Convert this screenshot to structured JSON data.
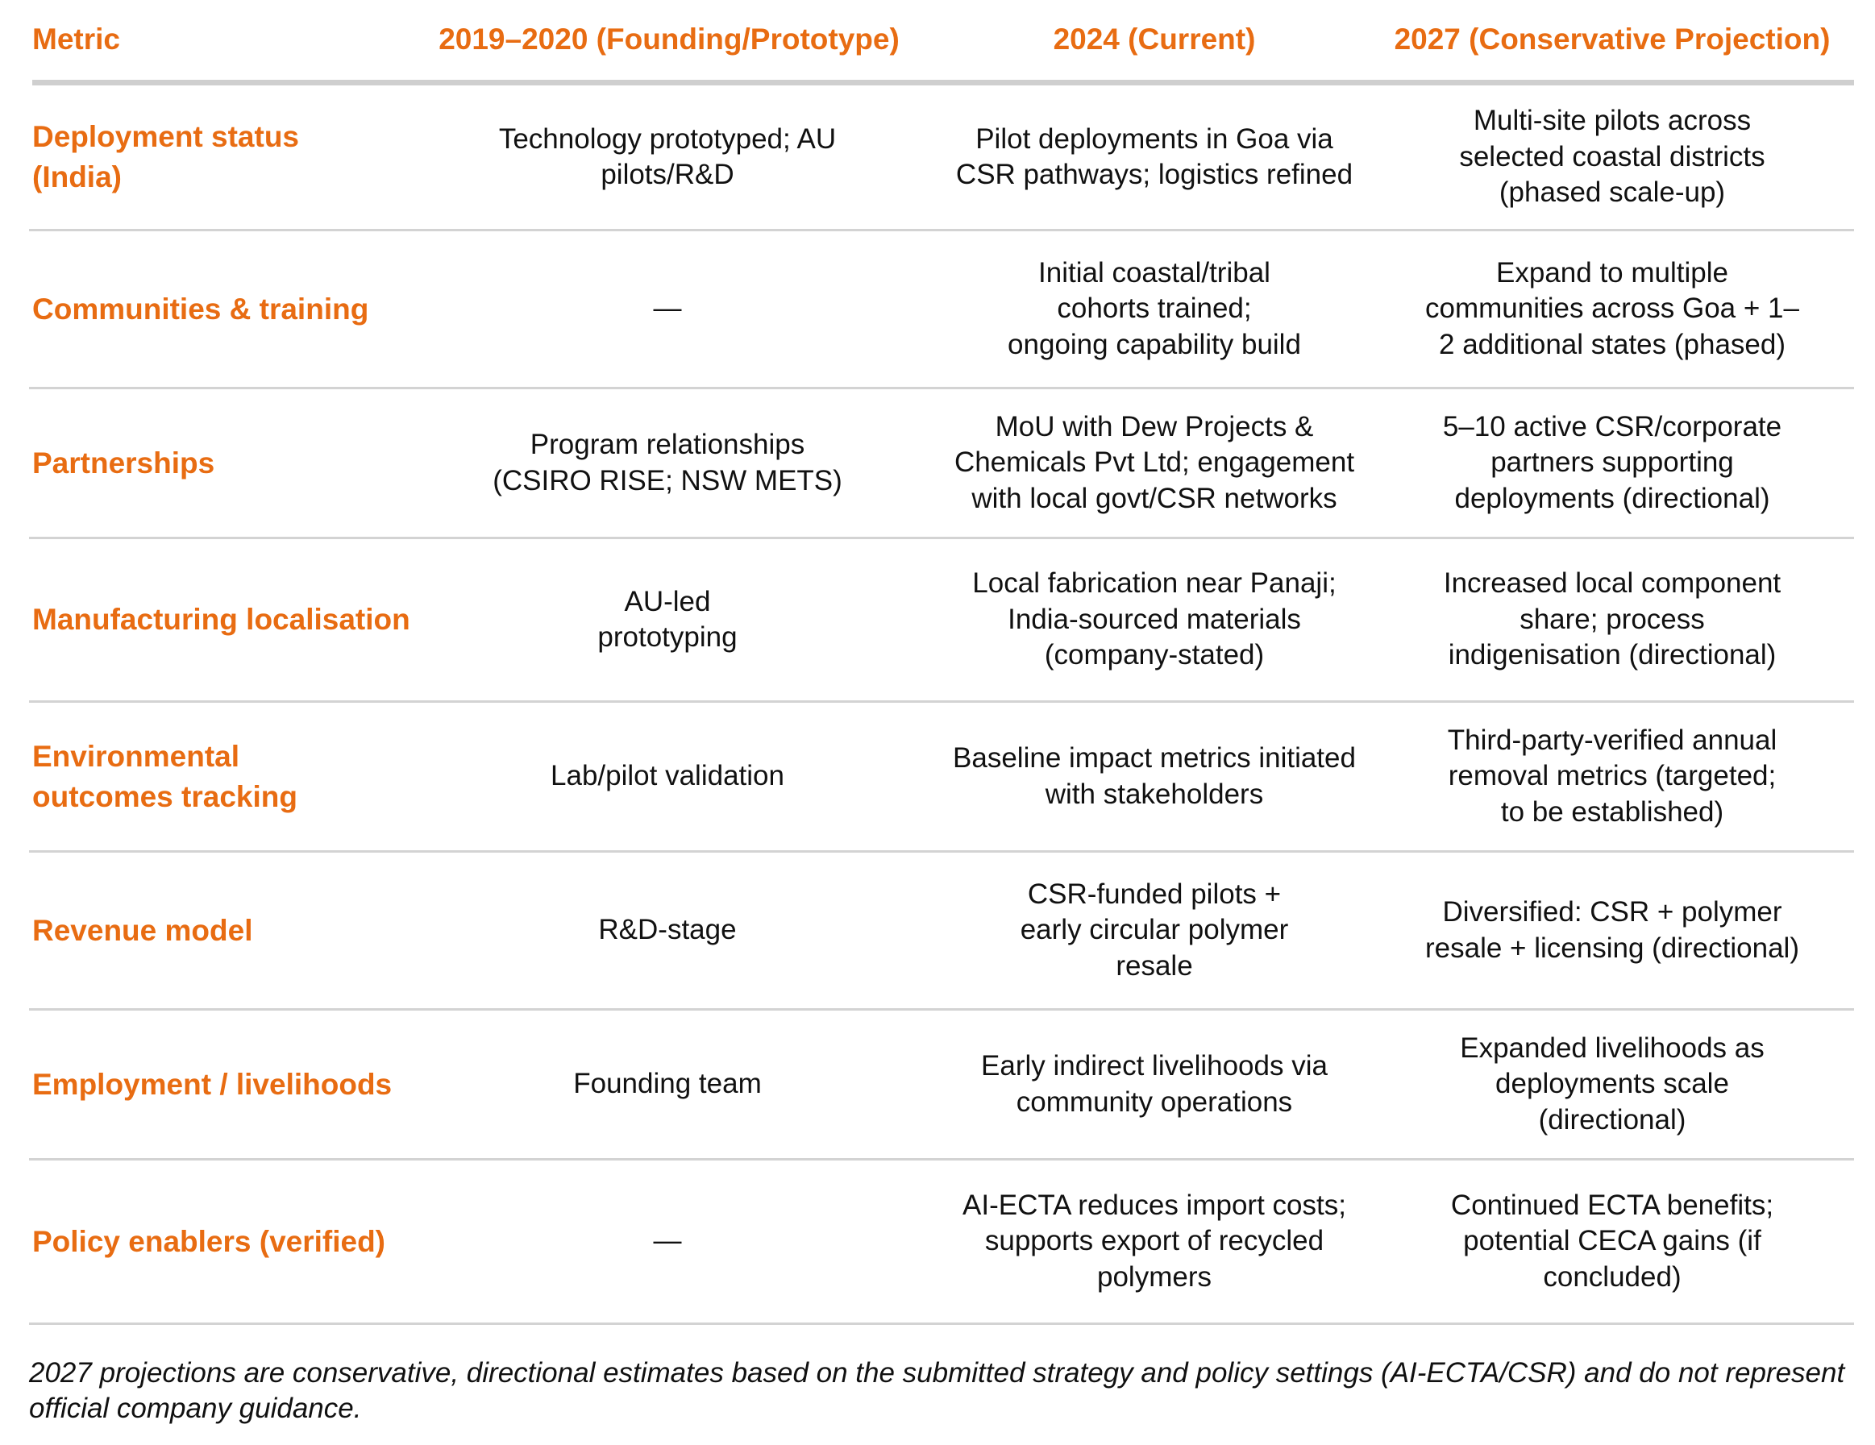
{
  "table": {
    "headers": [
      "Metric",
      "2019–2020 (Founding/Prototype)",
      "2024 (Current)",
      "2027 (Conservative Projection)"
    ],
    "rows": [
      {
        "metric": "Deployment status\n(India)",
        "y2019": "Technology prototyped; AU\npilots/R&D",
        "y2024": "Pilot deployments in Goa via\nCSR pathways; logistics refined",
        "y2027": "Multi-site pilots across\nselected coastal districts\n(phased scale-up)"
      },
      {
        "metric": "Communities & training",
        "y2019": "—",
        "y2024": "Initial coastal/tribal\ncohorts trained;\nongoing capability build",
        "y2027": "Expand to multiple\ncommunities across Goa + 1–\n2 additional states (phased)"
      },
      {
        "metric": "Partnerships",
        "y2019": "Program relationships\n(CSIRO RISE; NSW METS)",
        "y2024": "MoU with Dew Projects &\nChemicals Pvt Ltd; engagement\nwith local govt/CSR networks",
        "y2027": "5–10 active CSR/corporate\npartners supporting\ndeployments (directional)"
      },
      {
        "metric": "Manufacturing localisation",
        "y2019": "AU-led\nprototyping",
        "y2024": "Local fabrication near Panaji;\nIndia-sourced materials\n(company-stated)",
        "y2027": "Increased local component\nshare; process\nindigenisation (directional)"
      },
      {
        "metric": "Environmental\noutcomes tracking",
        "y2019": "Lab/pilot validation",
        "y2024": "Baseline impact metrics initiated\nwith stakeholders",
        "y2027": "Third-party-verified annual\nremoval metrics (targeted;\nto be established)"
      },
      {
        "metric": "Revenue model",
        "y2019": "R&D-stage",
        "y2024": "CSR-funded pilots +\nearly circular polymer\nresale",
        "y2027": "Diversified: CSR + polymer\nresale + licensing (directional)"
      },
      {
        "metric": "Employment / livelihoods",
        "y2019": "Founding team",
        "y2024": "Early indirect livelihoods via\ncommunity operations",
        "y2027": "Expanded livelihoods as\ndeployments scale\n(directional)"
      },
      {
        "metric": "Policy enablers (verified)",
        "y2019": "—",
        "y2024": "AI-ECTA reduces import costs;\nsupports export of recycled\npolymers",
        "y2027": "Continued ECTA benefits;\npotential CECA gains (if\nconcluded)"
      }
    ]
  },
  "footnote": "2027 projections are conservative, directional estimates based on the submitted strategy and policy settings (AI-ECTA/CSR) and do not represent official company guidance.",
  "colors": {
    "accent": "#e86c12",
    "rule": "#d3d3d3",
    "header_rule": "#cfcfcf",
    "text": "#111111"
  }
}
